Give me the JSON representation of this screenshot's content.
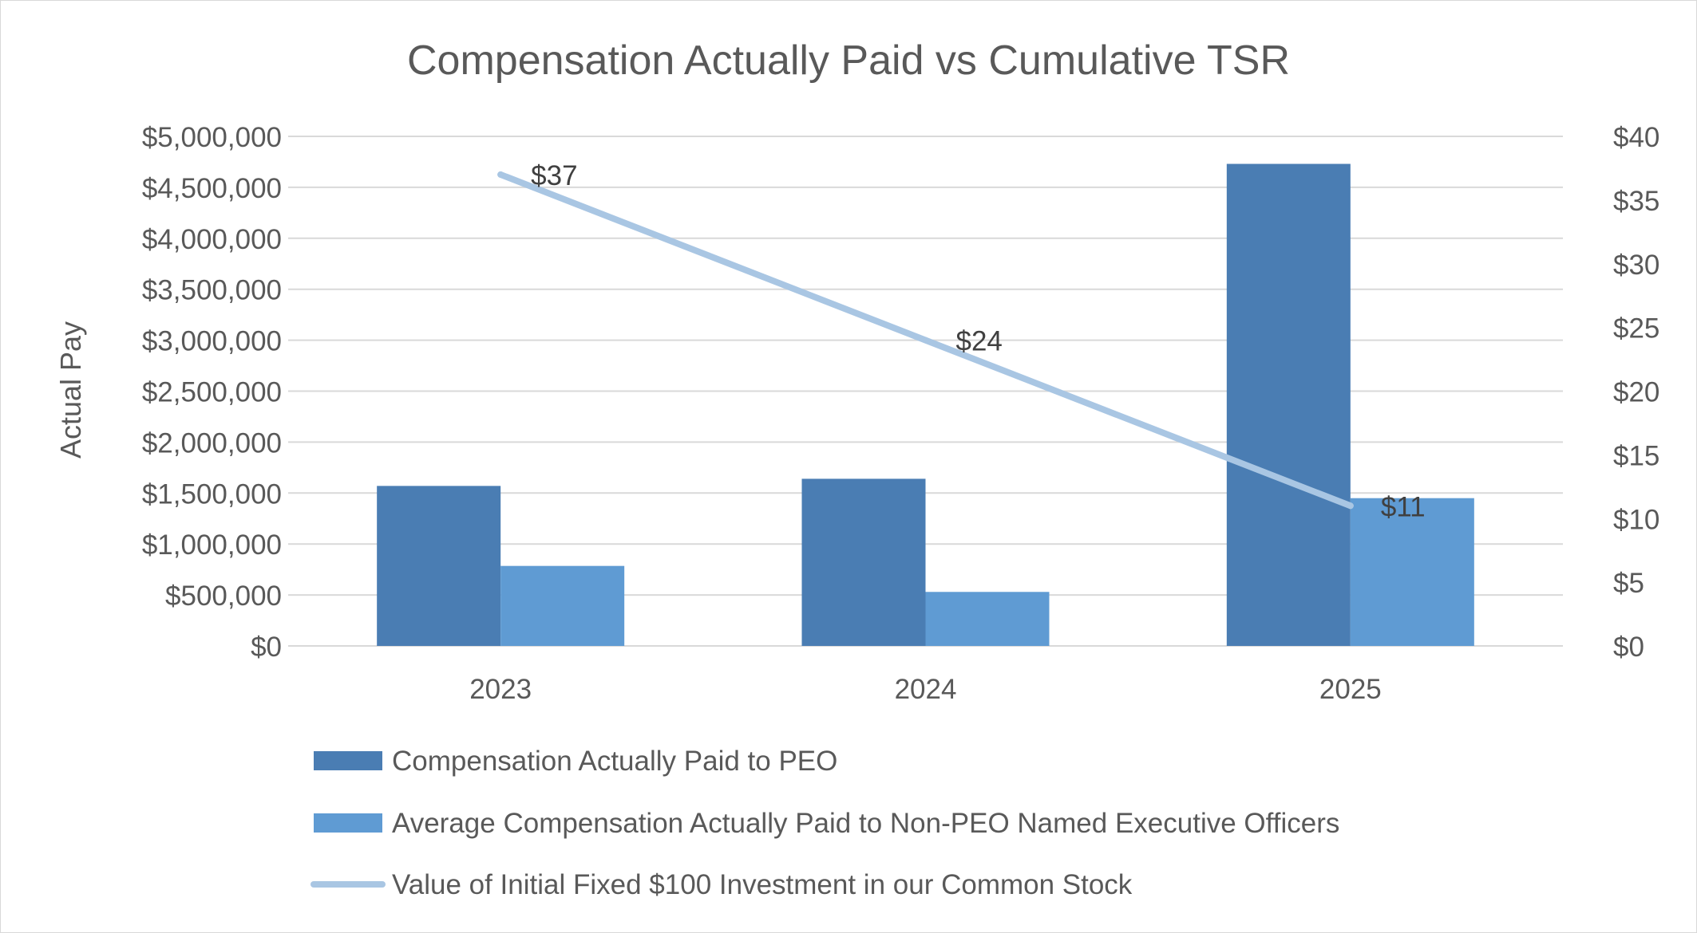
{
  "chart_data": {
    "type": "bar",
    "title": "Compensation Actually Paid vs Cumulative TSR",
    "ylabel": "Actual Pay",
    "categories": [
      "2023",
      "2024",
      "2025"
    ],
    "ylim": [
      0,
      5000000
    ],
    "y2lim": [
      0,
      40
    ],
    "yticks": [
      "$0",
      "$500,000",
      "$1,000,000",
      "$1,500,000",
      "$2,000,000",
      "$2,500,000",
      "$3,000,000",
      "$3,500,000",
      "$4,000,000",
      "$4,500,000",
      "$5,000,000"
    ],
    "y2ticks": [
      "$0",
      "$5",
      "$10",
      "$15",
      "$20",
      "$25",
      "$30",
      "$35",
      "$40"
    ],
    "grid": true,
    "legend": "bottom",
    "series": [
      {
        "name": "Compensation Actually Paid to PEO",
        "type": "bar",
        "axis": "left",
        "color": "#4a7db3",
        "values": [
          1570000,
          1640000,
          4730000
        ]
      },
      {
        "name": "Average Compensation Actually Paid to Non-PEO Named Executive Officers",
        "type": "bar",
        "axis": "left",
        "color": "#5f9bd3",
        "values": [
          785000,
          530000,
          1450000
        ]
      },
      {
        "name": "Value of Initial Fixed $100 Investment in our Common Stock",
        "type": "line",
        "axis": "right",
        "color": "#a9c6e3",
        "values": [
          37,
          24,
          11
        ],
        "labels": [
          "$37",
          "$24",
          "$11"
        ]
      }
    ]
  }
}
